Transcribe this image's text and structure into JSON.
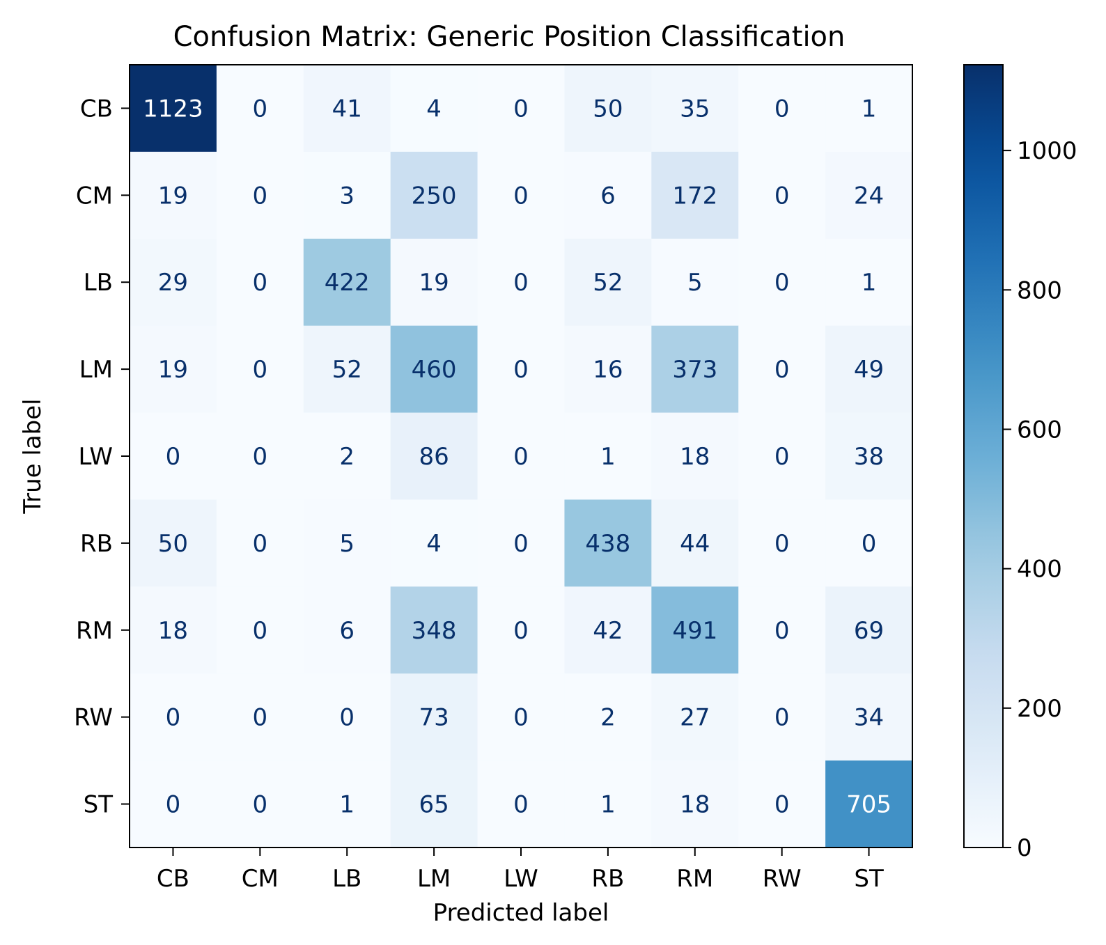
{
  "chart_data": {
    "type": "heatmap",
    "title": "Confusion Matrix: Generic Position Classification",
    "xlabel": "Predicted label",
    "ylabel": "True label",
    "x_categories": [
      "CB",
      "CM",
      "LB",
      "LM",
      "LW",
      "RB",
      "RM",
      "RW",
      "ST"
    ],
    "y_categories": [
      "CB",
      "CM",
      "LB",
      "LM",
      "LW",
      "RB",
      "RM",
      "RW",
      "ST"
    ],
    "values": [
      [
        1123,
        0,
        41,
        4,
        0,
        50,
        35,
        0,
        1
      ],
      [
        19,
        0,
        3,
        250,
        0,
        6,
        172,
        0,
        24
      ],
      [
        29,
        0,
        422,
        19,
        0,
        52,
        5,
        0,
        1
      ],
      [
        19,
        0,
        52,
        460,
        0,
        16,
        373,
        0,
        49
      ],
      [
        0,
        0,
        2,
        86,
        0,
        1,
        18,
        0,
        38
      ],
      [
        50,
        0,
        5,
        4,
        0,
        438,
        44,
        0,
        0
      ],
      [
        18,
        0,
        6,
        348,
        0,
        42,
        491,
        0,
        69
      ],
      [
        0,
        0,
        0,
        73,
        0,
        2,
        27,
        0,
        34
      ],
      [
        0,
        0,
        1,
        65,
        0,
        1,
        18,
        0,
        705
      ]
    ],
    "colormap": "Blues",
    "vmin": 0,
    "vmax": 1123,
    "colorbar_ticks": [
      "0",
      "200",
      "400",
      "600",
      "800",
      "1000"
    ],
    "colorbar_tick_values": [
      0,
      200,
      400,
      600,
      800,
      1000
    ],
    "text_colors": {
      "dark": "#08306b",
      "light": "#ffffff"
    },
    "grid": false
  }
}
